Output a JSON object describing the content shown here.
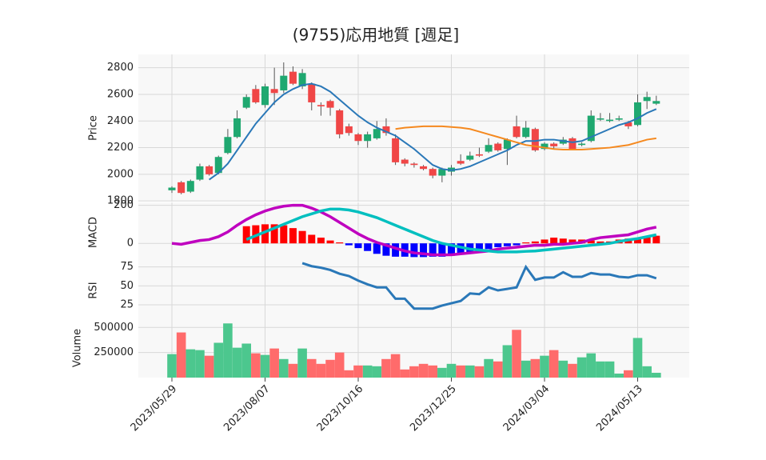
{
  "chart_data": [
    {
      "type": "candlestick",
      "title": "(9755)応用地質 [週足]",
      "y_label": "Price",
      "categories": [
        "2023/05/29",
        null,
        null,
        null,
        null,
        null,
        null,
        null,
        null,
        null,
        "2023/08/07",
        null,
        null,
        null,
        null,
        null,
        null,
        null,
        null,
        null,
        "2023/10/16",
        null,
        null,
        null,
        null,
        null,
        null,
        null,
        null,
        null,
        "2023/12/25",
        null,
        null,
        null,
        null,
        null,
        null,
        null,
        null,
        null,
        "2024/03/04",
        null,
        null,
        null,
        null,
        null,
        null,
        null,
        null,
        null,
        "2024/05/13",
        null,
        null
      ],
      "open": [
        1880,
        1940,
        1870,
        1960,
        2060,
        2010,
        2160,
        2280,
        2500,
        2640,
        2520,
        2640,
        2630,
        2770,
        2660,
        2680,
        2520,
        2550,
        2480,
        2360,
        2300,
        2250,
        2270,
        2360,
        2270,
        2110,
        2080,
        2060,
        2040,
        1990,
        2020,
        2100,
        2110,
        2150,
        2170,
        2230,
        2190,
        2360,
        2280,
        2340,
        2190,
        2230,
        2230,
        2270,
        2220,
        2250,
        2410,
        2400,
        2410,
        2390,
        2370,
        2550,
        2530
      ],
      "high": [
        1910,
        1950,
        1960,
        2080,
        2070,
        2140,
        2340,
        2480,
        2600,
        2670,
        2680,
        2800,
        2840,
        2810,
        2790,
        2690,
        2540,
        2560,
        2490,
        2380,
        2310,
        2320,
        2400,
        2420,
        2300,
        2120,
        2090,
        2070,
        2050,
        2050,
        2070,
        2150,
        2170,
        2200,
        2270,
        2240,
        2270,
        2440,
        2400,
        2350,
        2240,
        2240,
        2280,
        2280,
        2240,
        2480,
        2460,
        2460,
        2440,
        2400,
        2600,
        2620,
        2590
      ],
      "low": [
        1860,
        1850,
        1860,
        1950,
        1990,
        2000,
        2150,
        2270,
        2490,
        2530,
        2500,
        2520,
        2610,
        2670,
        2640,
        2480,
        2440,
        2440,
        2270,
        2290,
        2220,
        2200,
        2260,
        2290,
        2070,
        2060,
        2050,
        2030,
        1970,
        1940,
        1990,
        2070,
        2100,
        2130,
        2160,
        2170,
        2070,
        2270,
        2270,
        2170,
        2180,
        2190,
        2220,
        2180,
        2210,
        2240,
        2400,
        2390,
        2400,
        2340,
        2360,
        2490,
        2520
      ],
      "close": [
        1900,
        1860,
        1950,
        2060,
        2000,
        2130,
        2280,
        2420,
        2580,
        2540,
        2660,
        2610,
        2740,
        2680,
        2760,
        2540,
        2510,
        2500,
        2300,
        2310,
        2250,
        2300,
        2340,
        2310,
        2090,
        2080,
        2070,
        2040,
        1990,
        2040,
        2050,
        2080,
        2140,
        2140,
        2220,
        2180,
        2260,
        2280,
        2350,
        2180,
        2230,
        2210,
        2260,
        2190,
        2230,
        2440,
        2420,
        2410,
        2420,
        2360,
        2540,
        2580,
        2550
      ],
      "up_color": "#1fa870",
      "down_color": "#f04646",
      "lines": [
        {
          "color": "#2a78b8",
          "values": [
            null,
            null,
            null,
            null,
            1960,
            2010,
            2080,
            2180,
            2280,
            2380,
            2460,
            2540,
            2600,
            2640,
            2670,
            2680,
            2660,
            2620,
            2560,
            2500,
            2440,
            2390,
            2350,
            2320,
            2290,
            2240,
            2190,
            2130,
            2070,
            2040,
            2030,
            2040,
            2060,
            2090,
            2120,
            2150,
            2180,
            2220,
            2250,
            2250,
            2260,
            2260,
            2250,
            2240,
            2250,
            2280,
            2310,
            2340,
            2370,
            2390,
            2420,
            2460,
            2490
          ]
        },
        {
          "color": "#f5891f",
          "values": [
            null,
            null,
            null,
            null,
            null,
            null,
            null,
            null,
            null,
            null,
            null,
            null,
            null,
            null,
            null,
            null,
            null,
            null,
            null,
            null,
            null,
            null,
            null,
            null,
            2340,
            2350,
            2355,
            2360,
            2360,
            2360,
            2355,
            2350,
            2340,
            2320,
            2300,
            2280,
            2260,
            2240,
            2220,
            2210,
            2200,
            2190,
            2185,
            2185,
            2185,
            2190,
            2195,
            2200,
            2210,
            2220,
            2240,
            2260,
            2270
          ]
        }
      ],
      "ylim": [
        1795,
        2900
      ],
      "yticks": [
        1800,
        2000,
        2200,
        2400,
        2600,
        2800
      ],
      "grid": true
    },
    {
      "type": "macd",
      "y_label": "MACD",
      "series": [
        {
          "color": "#bf00bf",
          "values": [
            0,
            -5,
            5,
            15,
            20,
            35,
            60,
            95,
            125,
            150,
            170,
            185,
            195,
            200,
            200,
            185,
            165,
            140,
            110,
            80,
            50,
            25,
            5,
            -10,
            -25,
            -40,
            -50,
            -55,
            -60,
            -60,
            -60,
            -55,
            -50,
            -45,
            -40,
            -30,
            -25,
            -20,
            -15,
            -10,
            -10,
            -5,
            -5,
            0,
            5,
            20,
            30,
            35,
            40,
            45,
            60,
            75,
            85
          ]
        },
        {
          "color": "#00bfbf",
          "values": [
            null,
            null,
            null,
            null,
            null,
            null,
            null,
            null,
            20,
            40,
            60,
            80,
            100,
            120,
            140,
            155,
            170,
            180,
            180,
            175,
            165,
            150,
            135,
            115,
            95,
            75,
            55,
            35,
            15,
            0,
            -10,
            -20,
            -30,
            -35,
            -40,
            -45,
            -45,
            -45,
            -42,
            -40,
            -35,
            -30,
            -25,
            -20,
            -15,
            -10,
            -5,
            0,
            10,
            18,
            25,
            35,
            45
          ]
        }
      ],
      "histogram": {
        "positive_color": "#ff0000",
        "negative_color": "#0000ff",
        "values": [
          null,
          null,
          null,
          null,
          null,
          null,
          null,
          null,
          90,
          95,
          100,
          100,
          95,
          80,
          65,
          45,
          30,
          15,
          5,
          -10,
          -25,
          -40,
          -55,
          -65,
          -70,
          -70,
          -72,
          -72,
          -70,
          -70,
          -65,
          -60,
          -55,
          -45,
          -30,
          -20,
          -15,
          -10,
          5,
          10,
          20,
          30,
          25,
          20,
          20,
          15,
          10,
          10,
          20,
          25,
          30,
          35,
          40
        ]
      },
      "ylim": [
        -100,
        215
      ],
      "yticks": [
        0,
        200
      ],
      "grid": true
    },
    {
      "type": "line",
      "y_label": "RSI",
      "color": "#2a78b8",
      "values": [
        null,
        null,
        null,
        null,
        null,
        null,
        null,
        null,
        null,
        null,
        null,
        null,
        null,
        null,
        80,
        76,
        74,
        71,
        66,
        63,
        57,
        52,
        48,
        48,
        33,
        33,
        20,
        20,
        20,
        24,
        27,
        30,
        40,
        39,
        48,
        44,
        46,
        48,
        75,
        58,
        61,
        61,
        68,
        62,
        62,
        67,
        65,
        65,
        62,
        61,
        64,
        64,
        60
      ],
      "ylim": [
        7,
        81
      ],
      "yticks": [
        25,
        50,
        75
      ],
      "grid": true
    },
    {
      "type": "bar",
      "y_label": "Volume",
      "up_color": "#4cc78e",
      "down_color": "#ff6b6b",
      "values": [
        234000,
        450000,
        282000,
        274000,
        218000,
        347000,
        540000,
        298000,
        339000,
        242000,
        226000,
        290000,
        185000,
        137000,
        290000,
        185000,
        137000,
        177000,
        250000,
        73000,
        121000,
        121000,
        113000,
        185000,
        234000,
        81000,
        113000,
        137000,
        121000,
        97000,
        137000,
        121000,
        121000,
        113000,
        185000,
        161000,
        323000,
        476000,
        169000,
        185000,
        218000,
        274000,
        169000,
        137000,
        202000,
        242000,
        161000,
        161000,
        40000,
        73000,
        395000,
        113000,
        48000
      ],
      "ylim": [
        0,
        590000
      ],
      "yticks": [
        250000,
        500000
      ],
      "grid": true
    }
  ]
}
